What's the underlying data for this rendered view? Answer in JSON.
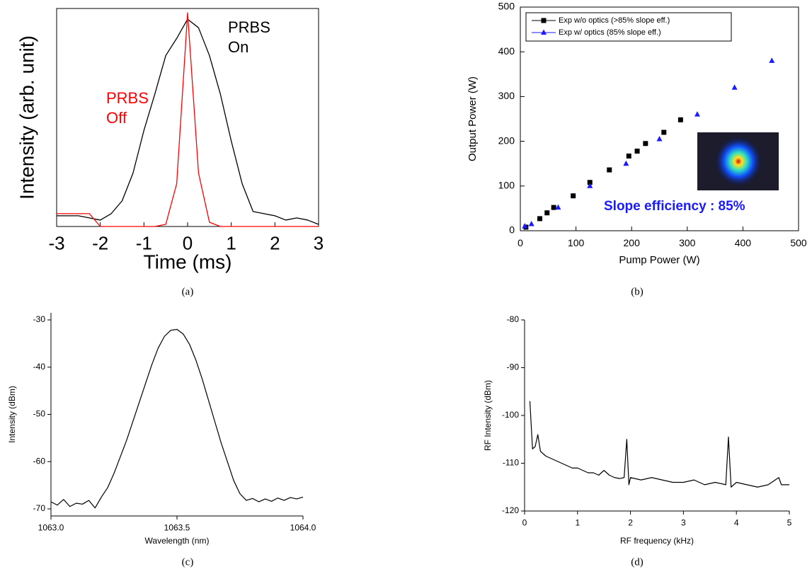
{
  "chart_data": [
    {
      "type": "line",
      "caption": "(a)",
      "xlabel": "Time (ms)",
      "ylabel": "Intensity (arb. unit)",
      "xlim": [
        -3,
        3
      ],
      "xticks": [
        -3,
        -2,
        -1,
        0,
        1,
        2,
        3
      ],
      "ylim": [
        0,
        1.02
      ],
      "x": [
        -3,
        -2.75,
        -2.5,
        -2.25,
        -2,
        -1.75,
        -1.5,
        -1.25,
        -1,
        -0.75,
        -0.5,
        -0.25,
        0,
        0.25,
        0.5,
        0.75,
        1,
        1.25,
        1.5,
        1.75,
        2,
        2.25,
        2.5,
        2.75,
        3
      ],
      "legend": false,
      "series": [
        {
          "name": "PRBS On",
          "color": "#000000",
          "values": [
            0.05,
            0.05,
            0.05,
            0.04,
            0.03,
            0.06,
            0.12,
            0.25,
            0.45,
            0.62,
            0.8,
            0.88,
            0.97,
            0.93,
            0.8,
            0.62,
            0.4,
            0.2,
            0.07,
            0.06,
            0.05,
            0.03,
            0.04,
            0.03,
            0.01
          ]
        },
        {
          "name": "PRBS Off",
          "color": "#ff0000",
          "values": [
            0.06,
            0.06,
            0.06,
            0.06,
            0,
            0,
            0,
            0,
            0,
            0,
            0.01,
            0.2,
            1.0,
            0.25,
            0.02,
            0,
            0,
            0,
            0,
            0,
            0,
            0,
            0,
            0,
            0
          ]
        }
      ]
    },
    {
      "type": "scatter",
      "caption": "(b)",
      "xlabel": "Pump Power (W)",
      "ylabel": "Output Power (W)",
      "xlim": [
        0,
        500
      ],
      "xticks": [
        0,
        100,
        200,
        300,
        400,
        500
      ],
      "ylim": [
        0,
        500
      ],
      "yticks": [
        0,
        100,
        200,
        300,
        400,
        500
      ],
      "legend": "upper left",
      "annotation": "Slope efficiency : 85%",
      "series": [
        {
          "name": "Exp w/o optics (>85% slope eff.)",
          "color": "#000000",
          "marker": "square",
          "x": [
            10,
            35,
            48,
            60,
            95,
            125,
            160,
            195,
            210,
            225,
            258,
            288
          ],
          "values": [
            8,
            27,
            40,
            52,
            78,
            108,
            136,
            167,
            178,
            195,
            220,
            248
          ]
        },
        {
          "name": "Exp w/  optics  (85% slope eff.)",
          "color": "#1a1aff",
          "marker": "triangle",
          "x": [
            8,
            20,
            68,
            125,
            190,
            250,
            318,
            385,
            452
          ],
          "values": [
            10,
            15,
            52,
            100,
            150,
            205,
            260,
            320,
            380
          ]
        }
      ]
    },
    {
      "type": "line",
      "caption": "(c)",
      "xlabel": "Wavelength (nm)",
      "ylabel": "Intensity (dBm)",
      "xlim": [
        1063.0,
        1064.0
      ],
      "xticks": [
        {
          "value": 1063.0,
          "label": "1063.0"
        },
        {
          "value": 1063.5,
          "label": "1063.5"
        },
        {
          "value": 1064.0,
          "label": "1064.0"
        }
      ],
      "ylim": [
        -71.5,
        -28.5
      ],
      "yticks": [
        -70,
        -60,
        -50,
        -40,
        -30
      ],
      "legend": false,
      "x": [
        1063.0,
        1063.025,
        1063.05,
        1063.075,
        1063.1,
        1063.125,
        1063.15,
        1063.175,
        1063.2,
        1063.225,
        1063.25,
        1063.275,
        1063.3,
        1063.325,
        1063.35,
        1063.375,
        1063.4,
        1063.425,
        1063.45,
        1063.475,
        1063.5,
        1063.525,
        1063.55,
        1063.575,
        1063.6,
        1063.625,
        1063.65,
        1063.675,
        1063.7,
        1063.725,
        1063.75,
        1063.775,
        1063.8,
        1063.825,
        1063.85,
        1063.875,
        1063.9,
        1063.925,
        1063.95,
        1063.975,
        1064.0
      ],
      "series": [
        {
          "color": "#000000",
          "values": [
            -68.5,
            -69.2,
            -68.0,
            -69.5,
            -68.8,
            -69.0,
            -68.2,
            -69.8,
            -67.5,
            -65.5,
            -62.5,
            -59,
            -55.5,
            -51.5,
            -47.5,
            -43.5,
            -39.5,
            -36,
            -33.5,
            -32.2,
            -32,
            -33,
            -35.2,
            -38.5,
            -42.5,
            -47,
            -51.5,
            -56,
            -60,
            -64,
            -66.8,
            -68.2,
            -67.8,
            -68.5,
            -67.9,
            -68.4,
            -67.7,
            -68.2,
            -67.6,
            -67.9,
            -67.5
          ]
        }
      ]
    },
    {
      "type": "line",
      "caption": "(d)",
      "xlabel": "RF  frequency (kHz)",
      "ylabel": "RF Intensity (dBm)",
      "xlim": [
        0,
        5
      ],
      "xticks": [
        0,
        1,
        2,
        3,
        4,
        5
      ],
      "ylim": [
        -120,
        -80
      ],
      "yticks": [
        -120,
        -110,
        -100,
        -90,
        -80
      ],
      "legend": false,
      "x": [
        0.1,
        0.15,
        0.2,
        0.25,
        0.3,
        0.4,
        0.5,
        0.6,
        0.7,
        0.8,
        0.9,
        1.0,
        1.1,
        1.2,
        1.3,
        1.4,
        1.5,
        1.6,
        1.7,
        1.8,
        1.88,
        1.93,
        1.97,
        2.0,
        2.2,
        2.4,
        2.6,
        2.8,
        3.0,
        3.2,
        3.4,
        3.6,
        3.8,
        3.85,
        3.9,
        4.0,
        4.2,
        4.4,
        4.6,
        4.8,
        4.85,
        5.0
      ],
      "series": [
        {
          "color": "#000000",
          "values": [
            -97,
            -107,
            -106.5,
            -104,
            -107.5,
            -108.5,
            -109,
            -109.5,
            -110,
            -110.5,
            -111,
            -111,
            -111.5,
            -112,
            -112,
            -112.5,
            -111.5,
            -112.5,
            -113,
            -113.2,
            -113,
            -105,
            -114.5,
            -113,
            -113.5,
            -113,
            -113.5,
            -114,
            -114,
            -113.5,
            -114.5,
            -114,
            -114.5,
            -104.5,
            -115,
            -114,
            -114.5,
            -115,
            -114.5,
            -113,
            -114.5,
            -114.5
          ]
        }
      ]
    }
  ]
}
